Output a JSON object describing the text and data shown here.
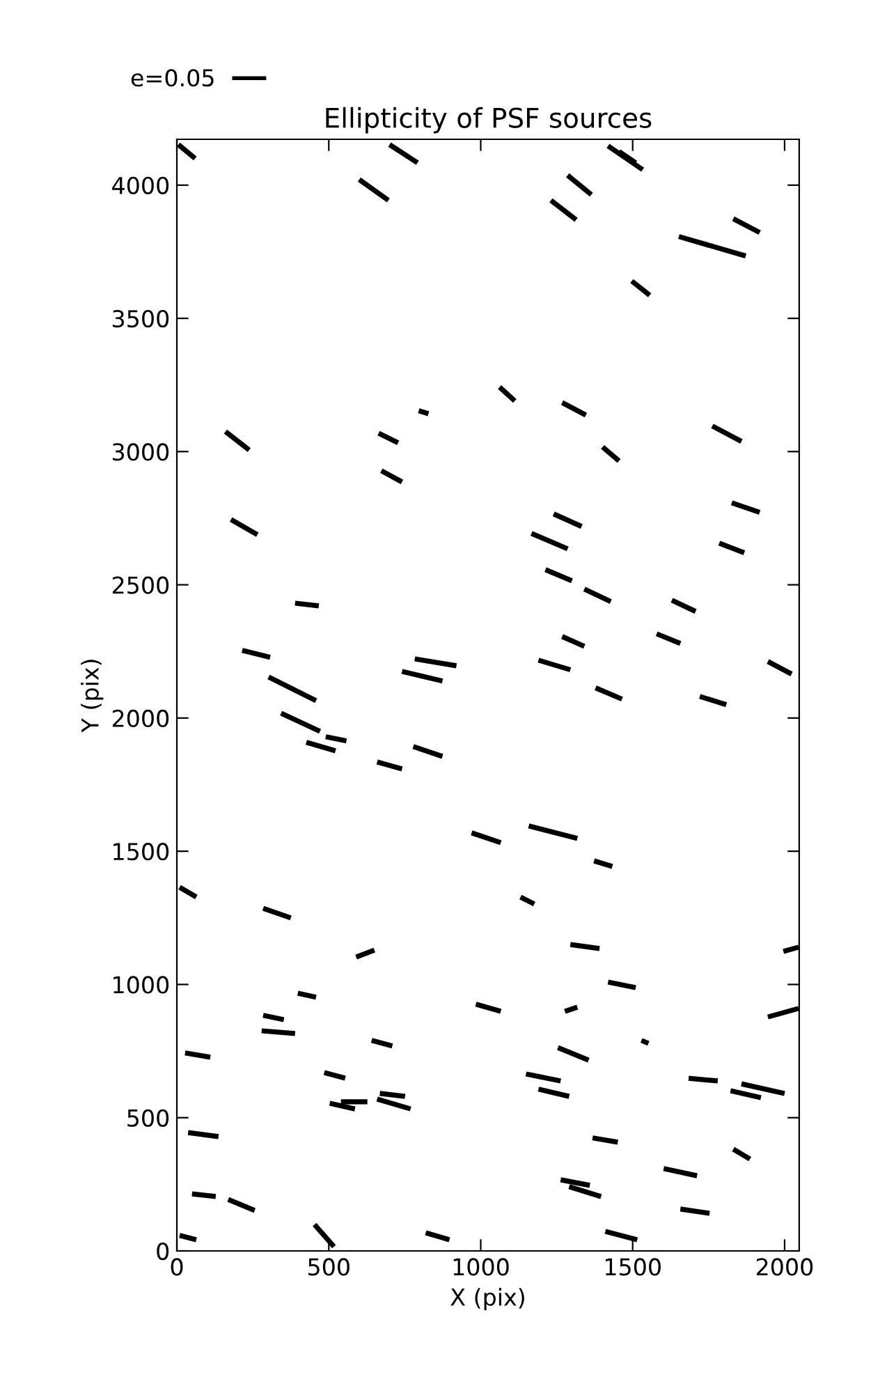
{
  "chart_data": {
    "type": "line",
    "title": "Ellipticity of PSF sources",
    "xlabel": "X (pix)",
    "ylabel": "Y (pix)",
    "xlim": [
      0,
      2048
    ],
    "ylim": [
      0,
      4172
    ],
    "xticks": [
      0,
      500,
      1000,
      1500,
      2000
    ],
    "yticks": [
      0,
      500,
      1000,
      1500,
      2000,
      2500,
      3000,
      3500,
      4000
    ],
    "grid": false,
    "legend": "top left",
    "marker": "none",
    "line_style": "solid",
    "series": [
      {
        "name": "e=0.05",
        "color": "#000000",
        "x": [
          5,
          60
        ],
        "values": [
          4152,
          4100
        ]
      },
      {
        "color": "#000000",
        "x": [
          700,
          792
        ],
        "values": [
          4152,
          4084
        ]
      },
      {
        "color": "#000000",
        "x": [
          600,
          696
        ],
        "values": [
          4021,
          3943
        ]
      },
      {
        "color": "#000000",
        "x": [
          160,
          238
        ],
        "values": [
          3075,
          3006
        ]
      },
      {
        "color": "#000000",
        "x": [
          664,
          728
        ],
        "values": [
          3069,
          3033
        ]
      },
      {
        "color": "#000000",
        "x": [
          796,
          828
        ],
        "values": [
          3153,
          3142
        ]
      },
      {
        "color": "#000000",
        "x": [
          673,
          741
        ],
        "values": [
          2928,
          2886
        ]
      },
      {
        "color": "#000000",
        "x": [
          1419,
          1533
        ],
        "values": [
          4147,
          4058
        ]
      },
      {
        "color": "#000000",
        "x": [
          1455,
          1510
        ],
        "values": [
          4126,
          4084
        ]
      },
      {
        "color": "#000000",
        "x": [
          1286,
          1364
        ],
        "values": [
          4037,
          3964
        ]
      },
      {
        "color": "#000000",
        "x": [
          1231,
          1314
        ],
        "values": [
          3943,
          3870
        ]
      },
      {
        "color": "#000000",
        "x": [
          1831,
          1918
        ],
        "values": [
          3874,
          3822
        ]
      },
      {
        "color": "#000000",
        "x": [
          1652,
          1872
        ],
        "values": [
          3807,
          3734
        ]
      },
      {
        "color": "#000000",
        "x": [
          1497,
          1556
        ],
        "values": [
          3640,
          3587
        ]
      },
      {
        "color": "#000000",
        "x": [
          1062,
          1112
        ],
        "values": [
          3242,
          3190
        ]
      },
      {
        "color": "#000000",
        "x": [
          1268,
          1346
        ],
        "values": [
          3184,
          3137
        ]
      },
      {
        "color": "#000000",
        "x": [
          1762,
          1858
        ],
        "values": [
          3096,
          3038
        ]
      },
      {
        "color": "#000000",
        "x": [
          1401,
          1455
        ],
        "values": [
          3017,
          2965
        ]
      },
      {
        "color": "#000000",
        "x": [
          1826,
          1918
        ],
        "values": [
          2808,
          2772
        ]
      },
      {
        "color": "#000000",
        "x": [
          178,
          265
        ],
        "values": [
          2745,
          2688
        ]
      },
      {
        "color": "#000000",
        "x": [
          389,
          467
        ],
        "values": [
          2431,
          2421
        ]
      },
      {
        "color": "#000000",
        "x": [
          215,
          307
        ],
        "values": [
          2254,
          2228
        ]
      },
      {
        "color": "#000000",
        "x": [
          302,
          458
        ],
        "values": [
          2154,
          2065
        ]
      },
      {
        "color": "#000000",
        "x": [
          343,
          471
        ],
        "values": [
          2018,
          1950
        ]
      },
      {
        "color": "#000000",
        "x": [
          426,
          522
        ],
        "values": [
          1909,
          1877
        ]
      },
      {
        "color": "#000000",
        "x": [
          490,
          558
        ],
        "values": [
          1930,
          1914
        ]
      },
      {
        "color": "#000000",
        "x": [
          783,
          920
        ],
        "values": [
          2222,
          2196
        ]
      },
      {
        "color": "#000000",
        "x": [
          741,
          874
        ],
        "values": [
          2175,
          2139
        ]
      },
      {
        "color": "#000000",
        "x": [
          659,
          741
        ],
        "values": [
          1835,
          1809
        ]
      },
      {
        "color": "#000000",
        "x": [
          778,
          874
        ],
        "values": [
          1893,
          1856
        ]
      },
      {
        "color": "#000000",
        "x": [
          970,
          1066
        ],
        "values": [
          1569,
          1532
        ]
      },
      {
        "color": "#000000",
        "x": [
          1240,
          1332
        ],
        "values": [
          2766,
          2719
        ]
      },
      {
        "color": "#000000",
        "x": [
          1167,
          1286
        ],
        "values": [
          2693,
          2635
        ]
      },
      {
        "color": "#000000",
        "x": [
          1785,
          1867
        ],
        "values": [
          2656,
          2620
        ]
      },
      {
        "color": "#000000",
        "x": [
          1213,
          1300
        ],
        "values": [
          2557,
          2515
        ]
      },
      {
        "color": "#000000",
        "x": [
          1341,
          1428
        ],
        "values": [
          2484,
          2437
        ]
      },
      {
        "color": "#000000",
        "x": [
          1629,
          1707
        ],
        "values": [
          2442,
          2400
        ]
      },
      {
        "color": "#000000",
        "x": [
          1268,
          1341
        ],
        "values": [
          2306,
          2269
        ]
      },
      {
        "color": "#000000",
        "x": [
          1190,
          1295
        ],
        "values": [
          2217,
          2181
        ]
      },
      {
        "color": "#000000",
        "x": [
          1579,
          1657
        ],
        "values": [
          2316,
          2280
        ]
      },
      {
        "color": "#000000",
        "x": [
          1945,
          2023
        ],
        "values": [
          2212,
          2165
        ]
      },
      {
        "color": "#000000",
        "x": [
          1378,
          1465
        ],
        "values": [
          2113,
          2071
        ]
      },
      {
        "color": "#000000",
        "x": [
          1721,
          1808
        ],
        "values": [
          2081,
          2050
        ]
      },
      {
        "color": "#000000",
        "x": [
          1158,
          1318
        ],
        "values": [
          1595,
          1548
        ]
      },
      {
        "color": "#000000",
        "x": [
          1373,
          1433
        ],
        "values": [
          1464,
          1443
        ]
      },
      {
        "color": "#000000",
        "x": [
          9,
          64
        ],
        "values": [
          1365,
          1328
        ]
      },
      {
        "color": "#000000",
        "x": [
          284,
          375
        ],
        "values": [
          1286,
          1250
        ]
      },
      {
        "color": "#000000",
        "x": [
          590,
          650
        ],
        "values": [
          1103,
          1129
        ]
      },
      {
        "color": "#000000",
        "x": [
          398,
          458
        ],
        "values": [
          967,
          952
        ]
      },
      {
        "color": "#000000",
        "x": [
          984,
          1066
        ],
        "values": [
          926,
          899
        ]
      },
      {
        "color": "#000000",
        "x": [
          284,
          352
        ],
        "values": [
          884,
          868
        ]
      },
      {
        "color": "#000000",
        "x": [
          279,
          389
        ],
        "values": [
          826,
          816
        ]
      },
      {
        "color": "#000000",
        "x": [
          641,
          709
        ],
        "values": [
          790,
          769
        ]
      },
      {
        "color": "#000000",
        "x": [
          27,
          110
        ],
        "values": [
          743,
          727
        ]
      },
      {
        "color": "#000000",
        "x": [
          485,
          554
        ],
        "values": [
          669,
          648
        ]
      },
      {
        "color": "#000000",
        "x": [
          503,
          586
        ],
        "values": [
          554,
          533
        ]
      },
      {
        "color": "#000000",
        "x": [
          540,
          627
        ],
        "values": [
          560,
          560
        ]
      },
      {
        "color": "#000000",
        "x": [
          668,
          751
        ],
        "values": [
          591,
          580
        ]
      },
      {
        "color": "#000000",
        "x": [
          659,
          769
        ],
        "values": [
          570,
          533
        ]
      },
      {
        "color": "#000000",
        "x": [
          37,
          137
        ],
        "values": [
          444,
          429
        ]
      },
      {
        "color": "#000000",
        "x": [
          50,
          128
        ],
        "values": [
          214,
          204
        ]
      },
      {
        "color": "#000000",
        "x": [
          169,
          256
        ],
        "values": [
          193,
          152
        ]
      },
      {
        "color": "#000000",
        "x": [
          453,
          517
        ],
        "values": [
          99,
          16
        ]
      },
      {
        "color": "#000000",
        "x": [
          819,
          897
        ],
        "values": [
          68,
          42
        ]
      },
      {
        "color": "#000000",
        "x": [
          9,
          64
        ],
        "values": [
          58,
          42
        ]
      },
      {
        "color": "#000000",
        "x": [
          1131,
          1176
        ],
        "values": [
          1328,
          1302
        ]
      },
      {
        "color": "#000000",
        "x": [
          1295,
          1391
        ],
        "values": [
          1150,
          1135
        ]
      },
      {
        "color": "#000000",
        "x": [
          1996,
          2046
        ],
        "values": [
          1124,
          1140
        ]
      },
      {
        "color": "#000000",
        "x": [
          1419,
          1510
        ],
        "values": [
          1009,
          988
        ]
      },
      {
        "color": "#000000",
        "x": [
          1277,
          1318
        ],
        "values": [
          899,
          915
        ]
      },
      {
        "color": "#000000",
        "x": [
          1945,
          2046
        ],
        "values": [
          878,
          910
        ]
      },
      {
        "color": "#000000",
        "x": [
          1529,
          1552
        ],
        "values": [
          790,
          779
        ]
      },
      {
        "color": "#000000",
        "x": [
          1254,
          1355
        ],
        "values": [
          763,
          716
        ]
      },
      {
        "color": "#000000",
        "x": [
          1149,
          1263
        ],
        "values": [
          664,
          638
        ]
      },
      {
        "color": "#000000",
        "x": [
          1190,
          1291
        ],
        "values": [
          607,
          580
        ]
      },
      {
        "color": "#000000",
        "x": [
          1684,
          1780
        ],
        "values": [
          648,
          638
        ]
      },
      {
        "color": "#000000",
        "x": [
          1858,
          2000
        ],
        "values": [
          627,
          591
        ]
      },
      {
        "color": "#000000",
        "x": [
          1822,
          1922
        ],
        "values": [
          601,
          575
        ]
      },
      {
        "color": "#000000",
        "x": [
          1368,
          1451
        ],
        "values": [
          424,
          408
        ]
      },
      {
        "color": "#000000",
        "x": [
          1831,
          1886
        ],
        "values": [
          382,
          345
        ]
      },
      {
        "color": "#000000",
        "x": [
          1602,
          1712
        ],
        "values": [
          309,
          282
        ]
      },
      {
        "color": "#000000",
        "x": [
          1263,
          1359
        ],
        "values": [
          267,
          246
        ]
      },
      {
        "color": "#000000",
        "x": [
          1291,
          1396
        ],
        "values": [
          241,
          204
        ]
      },
      {
        "color": "#000000",
        "x": [
          1657,
          1753
        ],
        "values": [
          157,
          141
        ]
      },
      {
        "color": "#000000",
        "x": [
          1410,
          1515
        ],
        "values": [
          73,
          42
        ]
      }
    ]
  }
}
